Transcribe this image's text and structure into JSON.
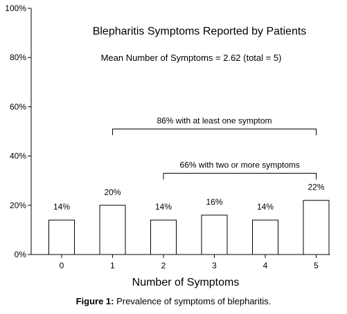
{
  "chart_data": {
    "type": "bar",
    "title": "Blepharitis Symptoms Reported by Patients",
    "subtitle": "Mean Number of Symptoms = 2.62 (total = 5)",
    "xlabel": "Number of Symptoms",
    "ylabel": "",
    "categories": [
      "0",
      "1",
      "2",
      "3",
      "4",
      "5"
    ],
    "values": [
      14,
      20,
      14,
      16,
      14,
      22
    ],
    "value_labels": [
      "14%",
      "20%",
      "14%",
      "16%",
      "14%",
      "22%"
    ],
    "ylim": [
      0,
      100
    ],
    "y_ticks": [
      0,
      20,
      40,
      60,
      80,
      100
    ],
    "y_tick_labels": [
      "0%",
      "20%",
      "40%",
      "60%",
      "80%",
      "100%"
    ],
    "grid": false,
    "annotations": [
      {
        "text": "86% with at least one symptom",
        "from_category": "1",
        "to_category": "5",
        "level": 51
      },
      {
        "text": "66% with two or more symptoms",
        "from_category": "2",
        "to_category": "5",
        "level": 33
      }
    ]
  },
  "caption": {
    "label": "Figure 1:",
    "text": " Prevalence of symptoms of blepharitis."
  }
}
